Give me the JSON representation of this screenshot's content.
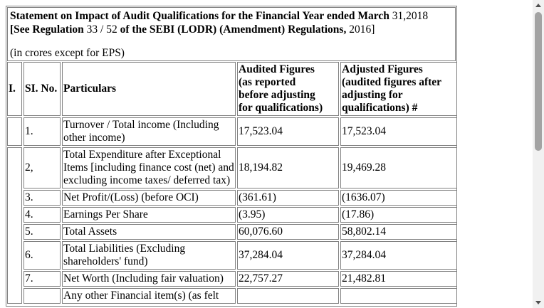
{
  "heading": {
    "line1_a": "Statement on Impact of Audit Qualifications for the Financial Year ended March ",
    "line1_b": "31,2018",
    "line2_a": "[See Regulation ",
    "line2_b": "33 / 52",
    "line2_c": " of the SEBI (LODR) (Amendment) Regulations, ",
    "line2_d": "2016]",
    "unit_note": "(in crores except for EPS)"
  },
  "columns": {
    "roman": "I.",
    "sl_no": "SI. No.",
    "particulars": "Particulars",
    "audited": [
      "Audited Figures",
      "(as reported",
      "before adjusting",
      "for qualifications)"
    ],
    "adjusted": [
      "Adjusted Figures",
      "(audited figures after",
      "adjusting for",
      "qualifications) #"
    ]
  },
  "rows": [
    {
      "sl": "1.",
      "particular": "Turnover / Total income (Including other income)",
      "audited": "17,523.04",
      "adjusted": "17,523.04"
    },
    {
      "sl": "2,",
      "particular": "Total Expenditure after Exceptional Items [including finance cost (net) and excluding income taxes/ deferred tax)",
      "audited": "18,194.82",
      "adjusted": "19,469.28"
    },
    {
      "sl": "3.",
      "particular": "Net Profit/(Loss) (before OCI)",
      "audited": "(361.61)",
      "adjusted": "(1636.07)"
    },
    {
      "sl": "4.",
      "particular": "Earnings Per Share",
      "audited": "(3.95)",
      "adjusted": "(17.86)"
    },
    {
      "sl": "5.",
      "particular": "Total Assets",
      "audited": "60,076.60",
      "adjusted": "58,802.14"
    },
    {
      "sl": "6.",
      "particular": "Total Liabilities (Excluding shareholders' fund)",
      "audited": "37,284.04",
      "adjusted": "37,284.04"
    },
    {
      "sl": "7.",
      "particular": "Net Worth (Including fair valuation)",
      "audited": "22,757.27",
      "adjusted": "21,482.81"
    },
    {
      "sl": "",
      "particular": "Any other Financial item(s) (as felt",
      "audited": "",
      "adjusted": ""
    }
  ],
  "scrollbar": {
    "thumb_color": "#a3a3a3",
    "track_color": "#f1f1f1"
  }
}
